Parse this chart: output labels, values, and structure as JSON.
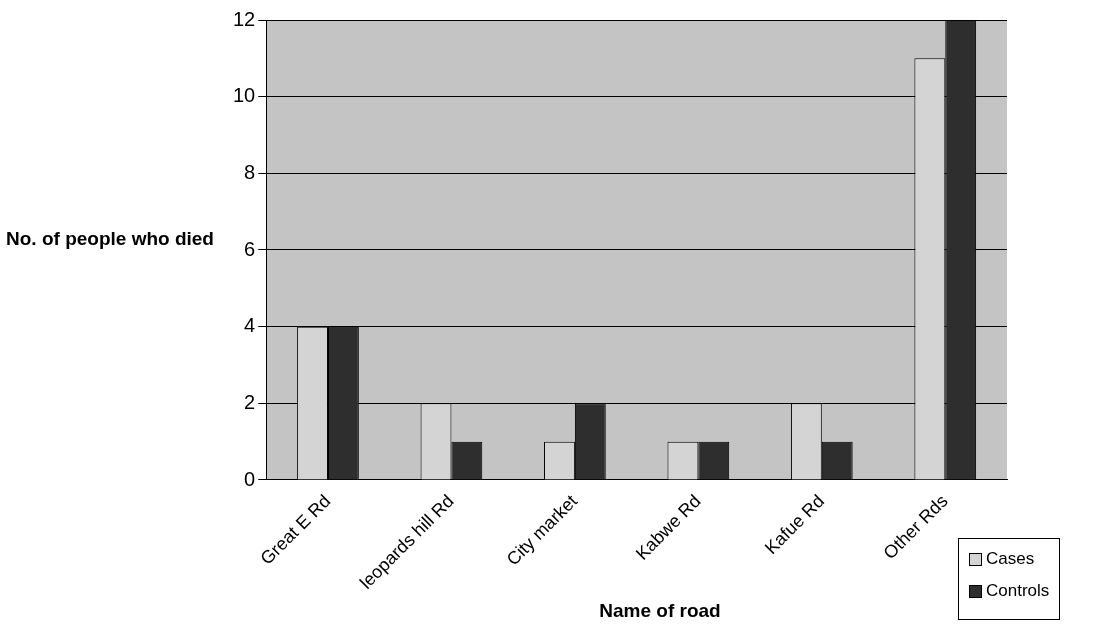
{
  "chart_data": {
    "type": "bar",
    "xlabel": "Name of road",
    "ylabel": "No. of people who died",
    "categories": [
      "Great E Rd",
      "leopards hill Rd",
      "City market",
      "Kabwe Rd",
      "Kafue Rd",
      "Other Rds"
    ],
    "series": [
      {
        "name": "Cases",
        "color": "#d4d4d4",
        "values": [
          4,
          2,
          1,
          1,
          2,
          11
        ]
      },
      {
        "name": "Controls",
        "color": "#2e2e2e",
        "values": [
          4,
          1,
          2,
          1,
          1,
          12
        ]
      }
    ],
    "ylim": [
      0,
      12
    ],
    "yticks": [
      0,
      2,
      4,
      6,
      8,
      10,
      12
    ],
    "grid": "y",
    "legend": "bottom right"
  }
}
